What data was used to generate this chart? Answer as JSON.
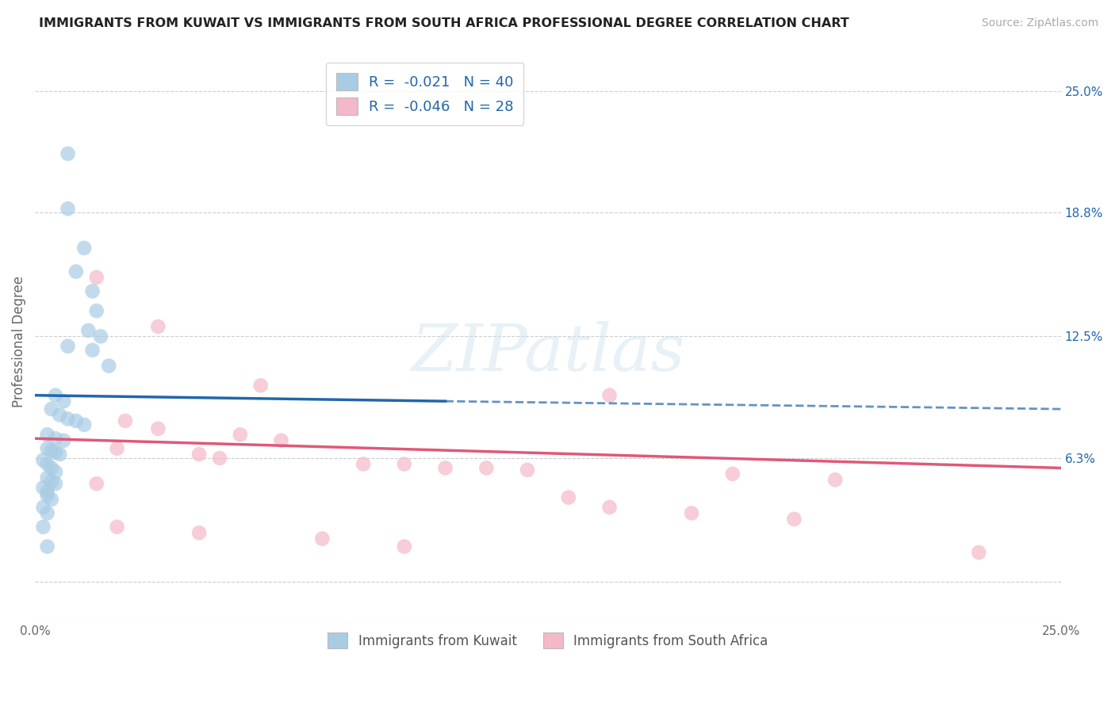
{
  "title": "IMMIGRANTS FROM KUWAIT VS IMMIGRANTS FROM SOUTH AFRICA PROFESSIONAL DEGREE CORRELATION CHART",
  "source": "Source: ZipAtlas.com",
  "ylabel": "Professional Degree",
  "xlabel": "",
  "xmin": 0.0,
  "xmax": 0.25,
  "ymin": -0.02,
  "ymax": 0.265,
  "ytick_vals": [
    0.0,
    0.063,
    0.125,
    0.188,
    0.25
  ],
  "ytick_labels_right": [
    "",
    "6.3%",
    "12.5%",
    "18.8%",
    "25.0%"
  ],
  "xtick_labels": [
    "0.0%",
    "25.0%"
  ],
  "kuwait_color": "#a8cce4",
  "south_africa_color": "#f4b8c8",
  "kuwait_line_color": "#2166ac",
  "south_africa_line_color": "#e05878",
  "kuwait_scatter": [
    [
      0.008,
      0.218
    ],
    [
      0.008,
      0.19
    ],
    [
      0.012,
      0.17
    ],
    [
      0.01,
      0.158
    ],
    [
      0.014,
      0.148
    ],
    [
      0.015,
      0.138
    ],
    [
      0.013,
      0.128
    ],
    [
      0.008,
      0.12
    ],
    [
      0.014,
      0.118
    ],
    [
      0.016,
      0.125
    ],
    [
      0.018,
      0.11
    ],
    [
      0.005,
      0.095
    ],
    [
      0.007,
      0.092
    ],
    [
      0.004,
      0.088
    ],
    [
      0.006,
      0.085
    ],
    [
      0.008,
      0.083
    ],
    [
      0.01,
      0.082
    ],
    [
      0.012,
      0.08
    ],
    [
      0.003,
      0.075
    ],
    [
      0.005,
      0.073
    ],
    [
      0.007,
      0.072
    ],
    [
      0.003,
      0.068
    ],
    [
      0.004,
      0.067
    ],
    [
      0.005,
      0.066
    ],
    [
      0.006,
      0.065
    ],
    [
      0.002,
      0.062
    ],
    [
      0.003,
      0.06
    ],
    [
      0.004,
      0.058
    ],
    [
      0.005,
      0.056
    ],
    [
      0.003,
      0.053
    ],
    [
      0.004,
      0.051
    ],
    [
      0.005,
      0.05
    ],
    [
      0.002,
      0.048
    ],
    [
      0.003,
      0.046
    ],
    [
      0.003,
      0.044
    ],
    [
      0.004,
      0.042
    ],
    [
      0.002,
      0.038
    ],
    [
      0.003,
      0.035
    ],
    [
      0.002,
      0.028
    ],
    [
      0.003,
      0.018
    ]
  ],
  "south_africa_scatter": [
    [
      0.015,
      0.155
    ],
    [
      0.03,
      0.13
    ],
    [
      0.055,
      0.1
    ],
    [
      0.14,
      0.095
    ],
    [
      0.022,
      0.082
    ],
    [
      0.03,
      0.078
    ],
    [
      0.05,
      0.075
    ],
    [
      0.06,
      0.072
    ],
    [
      0.02,
      0.068
    ],
    [
      0.04,
      0.065
    ],
    [
      0.045,
      0.063
    ],
    [
      0.08,
      0.06
    ],
    [
      0.09,
      0.06
    ],
    [
      0.1,
      0.058
    ],
    [
      0.12,
      0.057
    ],
    [
      0.17,
      0.055
    ],
    [
      0.195,
      0.052
    ],
    [
      0.015,
      0.05
    ],
    [
      0.11,
      0.058
    ],
    [
      0.13,
      0.043
    ],
    [
      0.14,
      0.038
    ],
    [
      0.16,
      0.035
    ],
    [
      0.185,
      0.032
    ],
    [
      0.02,
      0.028
    ],
    [
      0.04,
      0.025
    ],
    [
      0.07,
      0.022
    ],
    [
      0.09,
      0.018
    ],
    [
      0.23,
      0.015
    ]
  ],
  "kuwait_trendline_solid": [
    [
      0.0,
      0.095
    ],
    [
      0.1,
      0.092
    ]
  ],
  "kuwait_trendline_dashed": [
    [
      0.1,
      0.092
    ],
    [
      0.25,
      0.088
    ]
  ],
  "south_africa_trendline": [
    [
      0.0,
      0.073
    ],
    [
      0.25,
      0.058
    ]
  ],
  "legend_kuwait_R": "-0.021",
  "legend_kuwait_N": "40",
  "legend_sa_R": "-0.046",
  "legend_sa_N": "28",
  "watermark_text": "ZIPatlas",
  "background_color": "#ffffff",
  "grid_color": "#cccccc"
}
